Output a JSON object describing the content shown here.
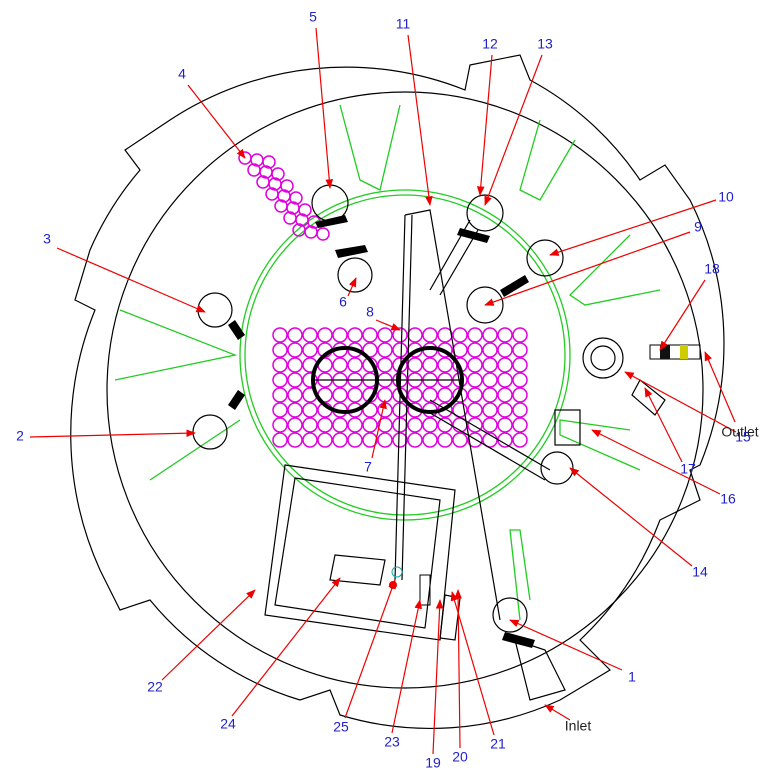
{
  "callouts": [
    "1",
    "2",
    "3",
    "4",
    "5",
    "6",
    "7",
    "8",
    "9",
    "10",
    "11",
    "12",
    "13",
    "14",
    "15",
    "16",
    "17",
    "18",
    "19",
    "20",
    "21",
    "22",
    "23",
    "24",
    "25",
    "Outlet",
    "Inlet"
  ]
}
